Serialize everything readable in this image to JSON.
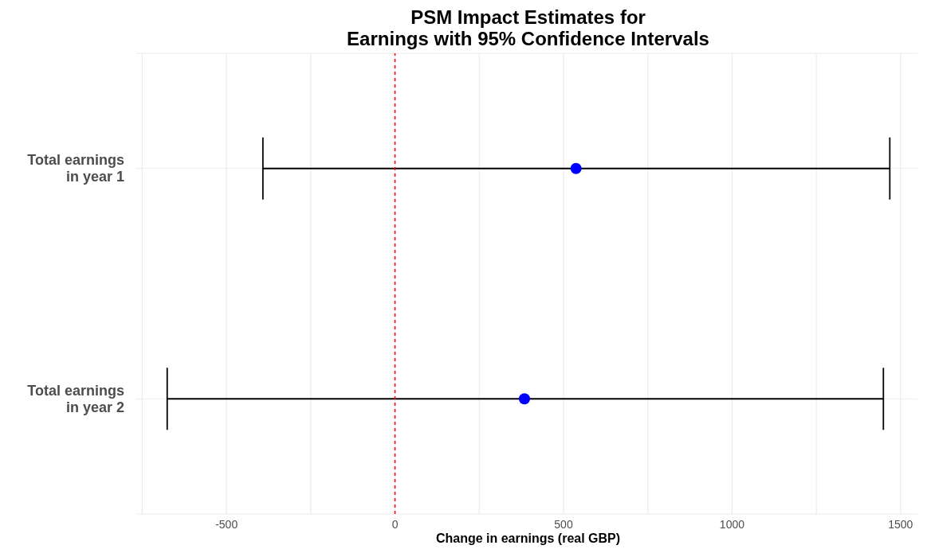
{
  "chart_data": {
    "type": "scatter",
    "title": "PSM Impact Estimates for\nEarnings with 95% Confidence Intervals",
    "xlabel": "Change in earnings (real GBP)",
    "orientation": "horizontal",
    "categories": [
      "Total earnings\nin year 1",
      "Total earnings\nin year 2"
    ],
    "series": [
      {
        "color": "#0000ff",
        "values": [
          537,
          384
        ],
        "errors": [
          [
            -392,
            1468
          ],
          [
            -676,
            1449
          ]
        ]
      }
    ],
    "xlim": [
      -770,
      1550
    ],
    "xticks": [
      {
        "value": -750,
        "label": null
      },
      -500,
      {
        "value": -250,
        "label": null
      },
      0,
      {
        "value": 250,
        "label": null
      },
      500,
      {
        "value": 750,
        "label": null
      },
      1000,
      {
        "value": 1250,
        "label": null
      },
      1500
    ],
    "ref_lines": [
      {
        "axis": "x",
        "value": 0,
        "color": "#ff0000",
        "line_style": "dashed"
      }
    ],
    "grid": true,
    "marker": "circle"
  }
}
